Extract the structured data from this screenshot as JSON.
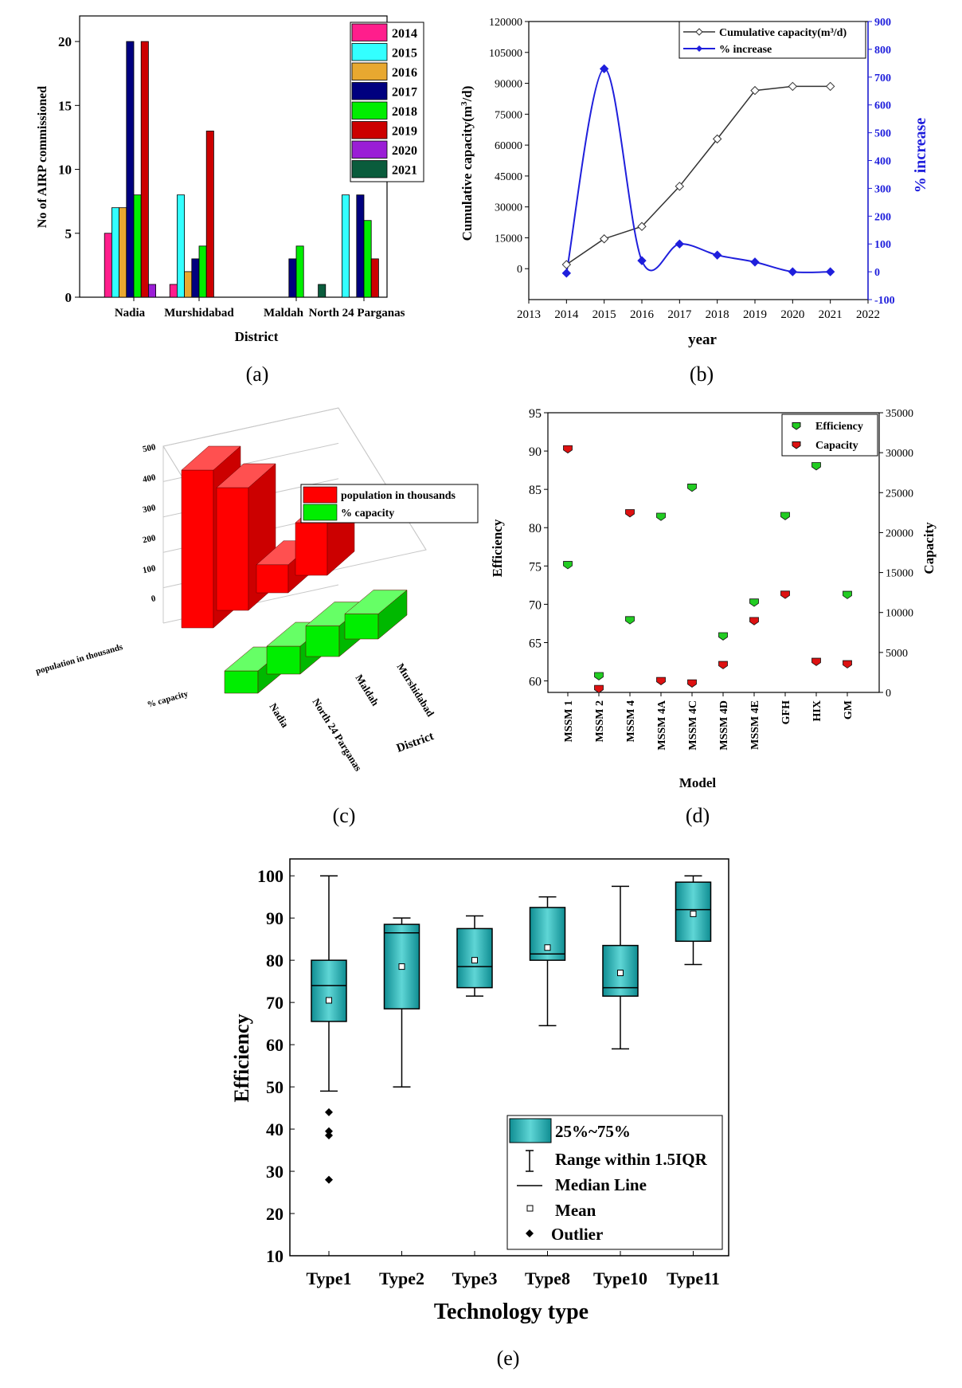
{
  "chart_data": [
    {
      "id": "a",
      "type": "bar",
      "panel_label": "(a)",
      "xlabel": "District",
      "ylabel": "No of AIRP commissioned",
      "ylim": [
        0,
        22
      ],
      "yticks": [
        0,
        5,
        10,
        15,
        20
      ],
      "categories": [
        "Nadia",
        "Murshidabad",
        "Maldah",
        "North 24 Parganas"
      ],
      "legend_position": "top-right",
      "series": [
        {
          "name": "2014",
          "color": "#ff1e8c",
          "values": [
            5,
            1,
            0,
            0
          ]
        },
        {
          "name": "2015",
          "color": "#33ffff",
          "values": [
            7,
            8,
            0,
            8
          ]
        },
        {
          "name": "2016",
          "color": "#e8a830",
          "values": [
            7,
            2,
            0,
            0
          ]
        },
        {
          "name": "2017",
          "color": "#00007f",
          "values": [
            20,
            3,
            3,
            8
          ]
        },
        {
          "name": "2018",
          "color": "#00ee00",
          "values": [
            8,
            4,
            4,
            6
          ]
        },
        {
          "name": "2019",
          "color": "#cc0000",
          "values": [
            20,
            13,
            0,
            3
          ]
        },
        {
          "name": "2020",
          "color": "#9a1ed6",
          "values": [
            1,
            0,
            0,
            0
          ]
        },
        {
          "name": "2021",
          "color": "#0a5c3c",
          "values": [
            0,
            0,
            1,
            0
          ]
        }
      ]
    },
    {
      "id": "b",
      "type": "line",
      "panel_label": "(b)",
      "xlabel": "year",
      "ylabel": "Cumulative capacity(m",
      "ylabel_sup": "3",
      "ylabel_tail": "/d)",
      "y2label": "% increase",
      "xlim": [
        2013,
        2022
      ],
      "xticks": [
        2013,
        2014,
        2015,
        2016,
        2017,
        2018,
        2019,
        2020,
        2021,
        2022
      ],
      "ylim": [
        -15000,
        120000
      ],
      "yticks": [
        0,
        15000,
        30000,
        45000,
        60000,
        75000,
        90000,
        105000,
        120000
      ],
      "y2lim": [
        -100,
        900
      ],
      "y2ticks": [
        -100,
        0,
        100,
        200,
        300,
        400,
        500,
        600,
        700,
        800,
        900
      ],
      "legend_position": "top-right",
      "series": [
        {
          "name": "Cumulative capacity(m³/d)",
          "axis": "left",
          "color": "#333333",
          "marker": "diamond-open",
          "x": [
            2014,
            2015,
            2016,
            2017,
            2018,
            2019,
            2020,
            2021
          ],
          "y": [
            2000,
            14500,
            20500,
            40000,
            63000,
            86500,
            88500,
            88500
          ]
        },
        {
          "name": "% increase",
          "axis": "right",
          "color": "#1f1fdc",
          "marker": "diamond-filled",
          "x": [
            2014,
            2015,
            2016,
            2017,
            2018,
            2019,
            2020,
            2021
          ],
          "y": [
            -5,
            730,
            40,
            100,
            60,
            35,
            0,
            0
          ]
        }
      ]
    },
    {
      "id": "c",
      "type": "bar3d",
      "panel_label": "(c)",
      "xlabel": "District",
      "categories": [
        "Nadia",
        "North 24 Parganas",
        "Maldah",
        "Murshidabad"
      ],
      "zlim": [
        0,
        500
      ],
      "zticks": [
        0,
        100,
        200,
        300,
        400,
        500
      ],
      "row_labels": [
        "population in thousands",
        "% capacity"
      ],
      "legend_position": "top-right",
      "series": [
        {
          "name": "population in thousands",
          "color": "#ff0000",
          "values": [
            450,
            350,
            80,
            150
          ]
        },
        {
          "name": "% capacity",
          "color": "#00ee00",
          "values": [
            80,
            100,
            110,
            90
          ]
        }
      ]
    },
    {
      "id": "d",
      "type": "scatter",
      "panel_label": "(d)",
      "xlabel": "Model",
      "ylabel": "Efficiency",
      "y2label": "Capacity",
      "categories": [
        "MSSM 1",
        "MSSM 2",
        "MSSM 4",
        "MSSM 4A",
        "MSSM 4C",
        "MSSM 4D",
        "MSSM 4E",
        "GFH",
        "HIX",
        "GM"
      ],
      "ylim": [
        58.5,
        95
      ],
      "yticks": [
        60,
        65,
        70,
        75,
        80,
        85,
        90,
        95
      ],
      "y2lim": [
        0,
        35000
      ],
      "y2ticks": [
        0,
        5000,
        10000,
        15000,
        20000,
        25000,
        30000,
        35000
      ],
      "legend_position": "top-right",
      "series": [
        {
          "name": "Efficiency",
          "axis": "left",
          "color": "#22cc22",
          "values": [
            75.2,
            60.7,
            68,
            81.5,
            85.3,
            65.9,
            70.3,
            81.6,
            88.1,
            71.3
          ]
        },
        {
          "name": "Capacity",
          "axis": "right",
          "color": "#dd1111",
          "values": [
            30500,
            500,
            22500,
            1500,
            1200,
            3500,
            9000,
            12300,
            3900,
            3600
          ]
        }
      ]
    },
    {
      "id": "e",
      "type": "box",
      "panel_label": "(e)",
      "xlabel": "Technology type",
      "ylabel": "Efficiency",
      "ylim": [
        10,
        104
      ],
      "yticks": [
        10,
        20,
        30,
        40,
        50,
        60,
        70,
        80,
        90,
        100
      ],
      "categories": [
        "Type1",
        "Type2",
        "Type3",
        "Type8",
        "Type10",
        "Type11"
      ],
      "boxes": [
        {
          "whisker_low": 49,
          "q1": 65.5,
          "median": 74,
          "q3": 80,
          "whisker_high": 100,
          "mean": 70.5,
          "outliers": [
            44,
            39.5,
            38.5,
            28
          ]
        },
        {
          "whisker_low": 50,
          "q1": 68.5,
          "median": 86.5,
          "q3": 88.5,
          "whisker_high": 90,
          "mean": 78.5,
          "outliers": []
        },
        {
          "whisker_low": 71.5,
          "q1": 73.5,
          "median": 78.5,
          "q3": 87.5,
          "whisker_high": 90.5,
          "mean": 80,
          "outliers": []
        },
        {
          "whisker_low": 64.5,
          "q1": 80,
          "median": 81.5,
          "q3": 92.5,
          "whisker_high": 95,
          "mean": 83,
          "outliers": []
        },
        {
          "whisker_low": 59,
          "q1": 71.5,
          "median": 73.5,
          "q3": 83.5,
          "whisker_high": 97.5,
          "mean": 77,
          "outliers": []
        },
        {
          "whisker_low": 79,
          "q1": 84.5,
          "median": 92,
          "q3": 98.5,
          "whisker_high": 100,
          "mean": 91,
          "outliers": []
        }
      ],
      "legend_position": "bottom-right",
      "legend": [
        "25%~75%",
        "Range within 1.5IQR",
        "Median Line",
        "Mean",
        "Outlier"
      ],
      "box_color": "#1aa6aa"
    }
  ]
}
